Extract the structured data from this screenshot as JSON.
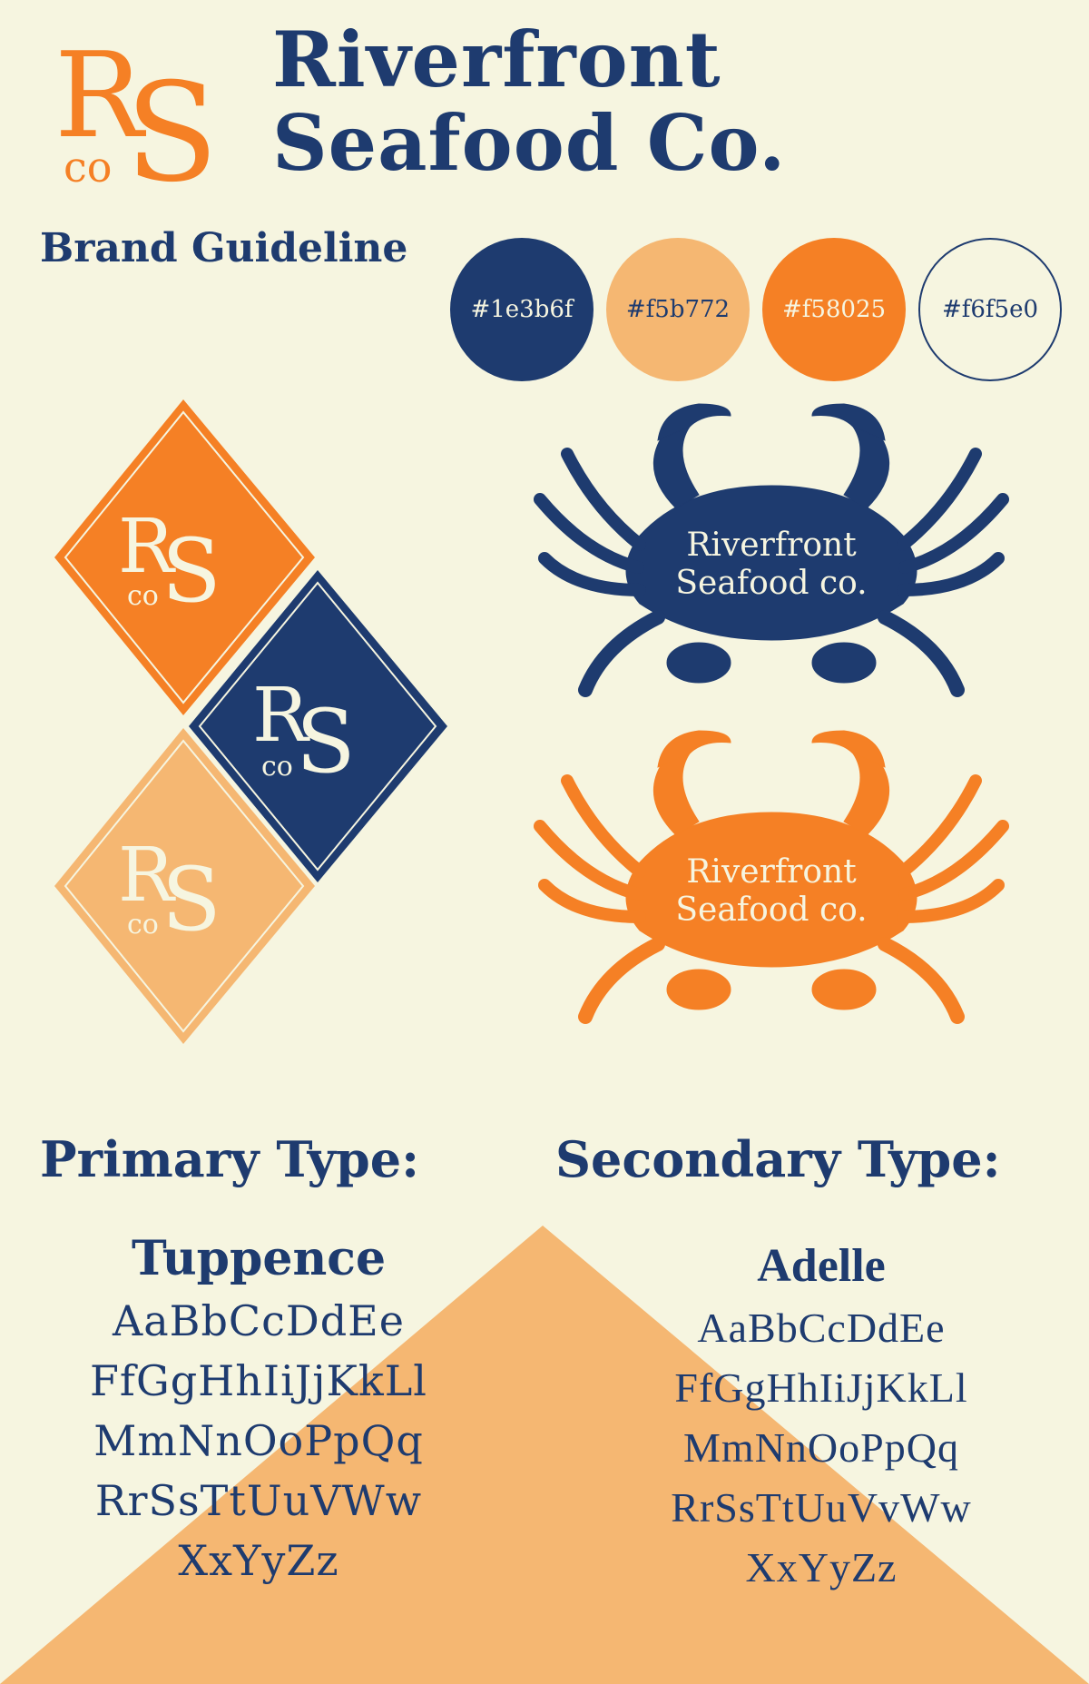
{
  "brand": {
    "name_line1": "Riverfront",
    "name_line2": "Seafood Co.",
    "subtitle": "Brand Guideline",
    "monogram": {
      "r": "R",
      "s": "S",
      "co": "co"
    }
  },
  "palette": [
    {
      "hex": "#1e3b6f",
      "label": "#1e3b6f",
      "text_color": "#f6f5e0",
      "bordered": false
    },
    {
      "hex": "#f5b772",
      "label": "#f5b772",
      "text_color": "#1e3b6f",
      "bordered": false
    },
    {
      "hex": "#f58025",
      "label": "#f58025",
      "text_color": "#f6f5e0",
      "bordered": false
    },
    {
      "hex": "#f6f5e0",
      "label": "#f6f5e0",
      "text_color": "#1e3b6f",
      "bordered": true
    }
  ],
  "colors": {
    "navy": "#1e3b6f",
    "light_orange": "#f5b772",
    "orange": "#f58025",
    "cream": "#f6f5e0"
  },
  "crab_logos": [
    {
      "line1": "Riverfront",
      "line2": "Seafood co.",
      "color": "#1e3b6f"
    },
    {
      "line1": "Riverfront",
      "line2": "Seafood co.",
      "color": "#f58025"
    }
  ],
  "typography": {
    "primary": {
      "heading": "Primary Type:",
      "font_name": "Tuppence",
      "lines": [
        "AaBbCcDdEe",
        "FfGgHhIiJjKkLl",
        "MmNnOoPpQq",
        "RrSsTtUuVWw",
        "XxYyZz"
      ]
    },
    "secondary": {
      "heading": "Secondary Type:",
      "font_name": "Adelle",
      "lines": [
        "AaBbCcDdEe",
        "FfGgHhIiJjKkLl",
        "MmNnOoPpQq",
        "RrSsTtUuVvWw",
        "XxYyZz"
      ]
    }
  },
  "icons": {
    "monogram": "rs-co-monogram-icon",
    "diamond": "diamond-badge-icon",
    "crab": "crab-icon"
  }
}
